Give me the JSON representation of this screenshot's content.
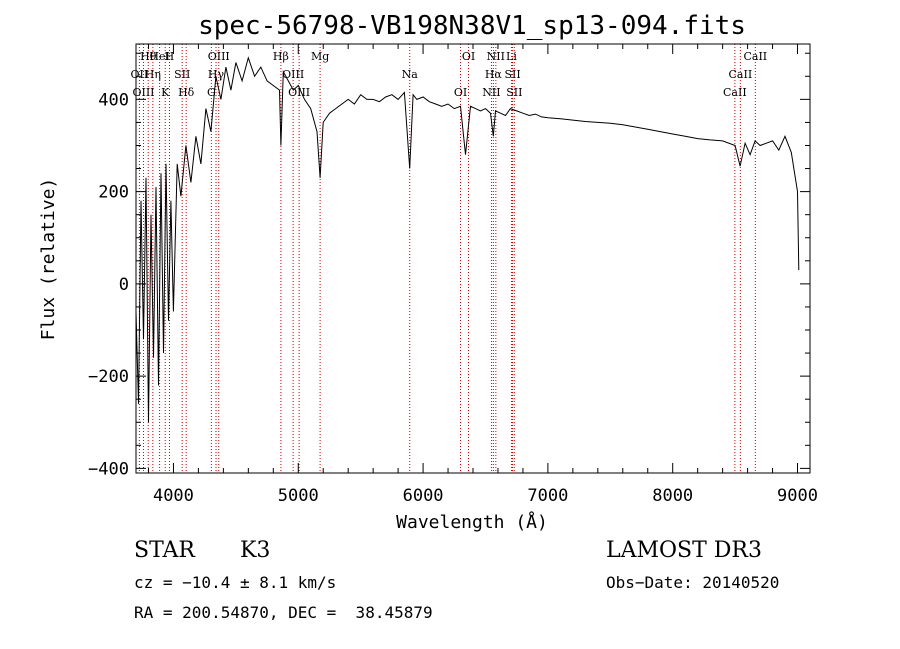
{
  "chart_data": {
    "type": "line",
    "title": "spec-56798-VB198N38V1_sp13-094.fits",
    "xlabel": "Wavelength (Å)",
    "ylabel": "Flux (relative)",
    "xlim": [
      3700,
      9100
    ],
    "ylim": [
      -410,
      520
    ],
    "xticks": [
      4000,
      5000,
      6000,
      7000,
      8000,
      9000
    ],
    "yticks": [
      -400,
      -200,
      0,
      200,
      400
    ],
    "grid": false,
    "legend": "none",
    "series": [
      {
        "name": "flux",
        "x": [
          3700,
          3720,
          3740,
          3760,
          3780,
          3800,
          3820,
          3840,
          3860,
          3880,
          3900,
          3920,
          3940,
          3960,
          3980,
          4000,
          4030,
          4060,
          4100,
          4140,
          4180,
          4220,
          4260,
          4300,
          4340,
          4380,
          4420,
          4460,
          4500,
          4550,
          4600,
          4650,
          4700,
          4750,
          4800,
          4850,
          4861,
          4880,
          4920,
          4960,
          5000,
          5050,
          5100,
          5150,
          5175,
          5200,
          5250,
          5300,
          5350,
          5400,
          5450,
          5500,
          5550,
          5600,
          5650,
          5700,
          5750,
          5800,
          5850,
          5893,
          5920,
          5950,
          6000,
          6050,
          6100,
          6150,
          6200,
          6250,
          6300,
          6340,
          6380,
          6420,
          6460,
          6500,
          6540,
          6563,
          6580,
          6620,
          6660,
          6700,
          6750,
          6800,
          6850,
          6900,
          6950,
          7000,
          7100,
          7200,
          7300,
          7400,
          7500,
          7600,
          7700,
          7800,
          7900,
          8000,
          8100,
          8200,
          8300,
          8400,
          8500,
          8540,
          8580,
          8620,
          8660,
          8700,
          8750,
          8800,
          8850,
          8900,
          8950,
          9000,
          9010
        ],
        "values": [
          -60,
          -260,
          180,
          -120,
          230,
          -300,
          150,
          -160,
          210,
          -220,
          240,
          -150,
          260,
          -80,
          180,
          -60,
          260,
          190,
          300,
          220,
          320,
          260,
          380,
          330,
          450,
          400,
          470,
          420,
          480,
          440,
          490,
          450,
          470,
          440,
          430,
          420,
          300,
          460,
          440,
          420,
          430,
          400,
          380,
          330,
          230,
          350,
          370,
          380,
          390,
          400,
          390,
          410,
          400,
          400,
          395,
          405,
          410,
          400,
          415,
          250,
          410,
          400,
          405,
          395,
          390,
          385,
          390,
          380,
          385,
          280,
          385,
          380,
          375,
          380,
          370,
          320,
          375,
          370,
          365,
          380,
          375,
          370,
          365,
          368,
          362,
          360,
          358,
          355,
          352,
          350,
          348,
          345,
          340,
          335,
          330,
          325,
          320,
          315,
          312,
          310,
          300,
          255,
          305,
          280,
          310,
          300,
          305,
          310,
          290,
          320,
          285,
          200,
          30
        ]
      }
    ],
    "lines": [
      {
        "label": "Hθ",
        "x": 3798
      },
      {
        "label": "OII",
        "x": 3727
      },
      {
        "label": "OIII",
        "x": 3760
      },
      {
        "label": "HeI",
        "x": 3889
      },
      {
        "label": "Hη",
        "x": 3835
      },
      {
        "label": "K",
        "x": 3934
      },
      {
        "label": "H",
        "x": 3968
      },
      {
        "label": "SII",
        "x": 4070
      },
      {
        "label": "Hδ",
        "x": 4102
      },
      {
        "label": "OIII",
        "x": 4363
      },
      {
        "label": "Hγ",
        "x": 4341
      },
      {
        "label": "G",
        "x": 4304
      },
      {
        "label": "Hβ",
        "x": 4861
      },
      {
        "label": "OIII",
        "x": 4959
      },
      {
        "label": "OIII",
        "x": 5007
      },
      {
        "label": "Mg",
        "x": 5175
      },
      {
        "label": "Na",
        "x": 5893
      },
      {
        "label": "OI",
        "x": 6300
      },
      {
        "label": "OI",
        "x": 6364
      },
      {
        "label": "Hα",
        "x": 6563
      },
      {
        "label": "NII",
        "x": 6548
      },
      {
        "label": "NII",
        "x": 6583
      },
      {
        "label": "SII",
        "x": 6717
      },
      {
        "label": "SII",
        "x": 6731
      },
      {
        "label": "Li",
        "x": 6708
      },
      {
        "label": "CaII",
        "x": 8542
      },
      {
        "label": "CaII",
        "x": 8498
      },
      {
        "label": "CaII",
        "x": 8662
      }
    ]
  },
  "info": {
    "class": "STAR",
    "subclass": "K3",
    "survey": "LAMOST DR3",
    "cz": "cz = −10.4 ± 8.1 km/s",
    "obs_date": "Obs−Date: 20140520",
    "coords": "RA = 200.54870, DEC =  38.45879"
  }
}
